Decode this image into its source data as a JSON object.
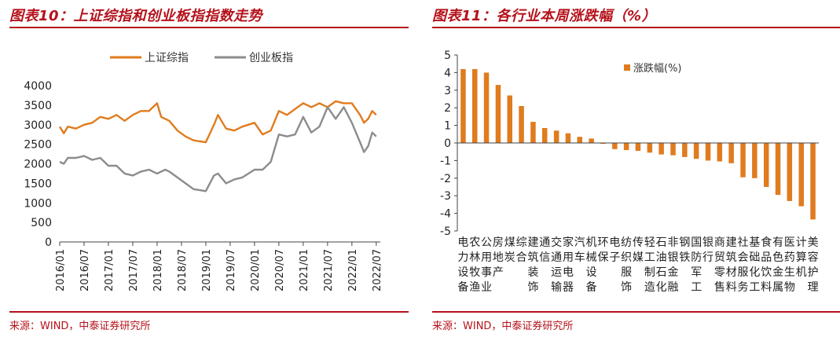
{
  "left": {
    "title": "图表10：上证综指和创业板指指数走势",
    "source": "来源：WIND，中泰证券研究所",
    "chart_data": {
      "type": "line",
      "ylim": [
        0,
        4000
      ],
      "yticks": [
        0,
        500,
        1000,
        1500,
        2000,
        2500,
        3000,
        3500,
        4000
      ],
      "xticks": [
        "2016/01",
        "2016/07",
        "2017/01",
        "2017/07",
        "2018/01",
        "2018/07",
        "2019/01",
        "2019/07",
        "2020/01",
        "2020/07",
        "2021/01",
        "2021/07",
        "2022/01",
        "2022/07"
      ],
      "legend_position": "top",
      "grid": false,
      "series": [
        {
          "name": "上证综指",
          "color": "#e07b1e",
          "points": [
            [
              "2016/01",
              2950
            ],
            [
              "2016/02",
              2780
            ],
            [
              "2016/03",
              2950
            ],
            [
              "2016/05",
              2900
            ],
            [
              "2016/07",
              3000
            ],
            [
              "2016/09",
              3050
            ],
            [
              "2016/11",
              3200
            ],
            [
              "2017/01",
              3150
            ],
            [
              "2017/03",
              3250
            ],
            [
              "2017/05",
              3100
            ],
            [
              "2017/07",
              3250
            ],
            [
              "2017/09",
              3350
            ],
            [
              "2017/11",
              3350
            ],
            [
              "2018/01",
              3550
            ],
            [
              "2018/02",
              3200
            ],
            [
              "2018/04",
              3100
            ],
            [
              "2018/06",
              2850
            ],
            [
              "2018/08",
              2700
            ],
            [
              "2018/10",
              2600
            ],
            [
              "2019/01",
              2550
            ],
            [
              "2019/03",
              3000
            ],
            [
              "2019/04",
              3250
            ],
            [
              "2019/06",
              2900
            ],
            [
              "2019/08",
              2850
            ],
            [
              "2019/10",
              2950
            ],
            [
              "2020/01",
              3050
            ],
            [
              "2020/03",
              2750
            ],
            [
              "2020/05",
              2850
            ],
            [
              "2020/07",
              3350
            ],
            [
              "2020/09",
              3250
            ],
            [
              "2020/11",
              3400
            ],
            [
              "2021/01",
              3550
            ],
            [
              "2021/03",
              3450
            ],
            [
              "2021/05",
              3550
            ],
            [
              "2021/07",
              3450
            ],
            [
              "2021/09",
              3600
            ],
            [
              "2021/11",
              3550
            ],
            [
              "2022/01",
              3550
            ],
            [
              "2022/03",
              3250
            ],
            [
              "2022/04",
              3050
            ],
            [
              "2022/05",
              3150
            ],
            [
              "2022/06",
              3350
            ],
            [
              "2022/07",
              3250
            ]
          ]
        },
        {
          "name": "创业板指",
          "color": "#8c8c8c",
          "points": [
            [
              "2016/01",
              2050
            ],
            [
              "2016/02",
              2000
            ],
            [
              "2016/03",
              2150
            ],
            [
              "2016/05",
              2150
            ],
            [
              "2016/07",
              2200
            ],
            [
              "2016/09",
              2100
            ],
            [
              "2016/11",
              2150
            ],
            [
              "2017/01",
              1950
            ],
            [
              "2017/03",
              1950
            ],
            [
              "2017/05",
              1750
            ],
            [
              "2017/07",
              1700
            ],
            [
              "2017/09",
              1800
            ],
            [
              "2017/11",
              1850
            ],
            [
              "2018/01",
              1750
            ],
            [
              "2018/03",
              1850
            ],
            [
              "2018/04",
              1800
            ],
            [
              "2018/06",
              1650
            ],
            [
              "2018/08",
              1500
            ],
            [
              "2018/10",
              1350
            ],
            [
              "2019/01",
              1300
            ],
            [
              "2019/03",
              1700
            ],
            [
              "2019/04",
              1750
            ],
            [
              "2019/06",
              1500
            ],
            [
              "2019/08",
              1600
            ],
            [
              "2019/10",
              1650
            ],
            [
              "2020/01",
              1850
            ],
            [
              "2020/03",
              1850
            ],
            [
              "2020/05",
              2050
            ],
            [
              "2020/07",
              2750
            ],
            [
              "2020/09",
              2700
            ],
            [
              "2020/11",
              2750
            ],
            [
              "2021/01",
              3200
            ],
            [
              "2021/03",
              2800
            ],
            [
              "2021/05",
              2950
            ],
            [
              "2021/07",
              3450
            ],
            [
              "2021/09",
              3150
            ],
            [
              "2021/11",
              3450
            ],
            [
              "2022/01",
              3050
            ],
            [
              "2022/03",
              2550
            ],
            [
              "2022/04",
              2300
            ],
            [
              "2022/05",
              2450
            ],
            [
              "2022/06",
              2800
            ],
            [
              "2022/07",
              2700
            ]
          ]
        }
      ]
    }
  },
  "right": {
    "title": "图表11：各行业本周涨跌幅（%）",
    "source": "来源：WIND，中泰证券研究所",
    "chart_data": {
      "type": "bar",
      "ylim": [
        -5,
        5
      ],
      "yticks": [
        -5,
        -4,
        -3,
        -2,
        -1,
        0,
        1,
        2,
        3,
        4,
        5
      ],
      "legend_position": "top-right",
      "series": [
        {
          "name": "涨跌幅(%)",
          "color": "#e07b1e",
          "values": [
            4.2,
            4.2,
            4.0,
            3.3,
            2.7,
            2.1,
            1.2,
            0.85,
            0.7,
            0.55,
            0.35,
            0.25,
            -0.05,
            -0.35,
            -0.4,
            -0.45,
            -0.55,
            -0.65,
            -0.7,
            -0.8,
            -0.9,
            -1.0,
            -1.05,
            -1.15,
            -1.95,
            -2.0,
            -2.5,
            -2.95,
            -3.3,
            -3.6,
            -4.35
          ]
        }
      ],
      "categories": [
        "电力设备",
        "农林牧渔",
        "公用事业",
        "房地产",
        "煤炭",
        "综合",
        "建筑装饰",
        "通信",
        "交通运输",
        "家用电器",
        "汽车",
        "机械设备",
        "环保",
        "电子",
        "纺织服饰",
        "传媒",
        "轻工制造",
        "石油石化",
        "非银金融",
        "钢铁",
        "国防军工",
        "银行",
        "商贸零售",
        "建筑材料",
        "社会服务",
        "基础化工",
        "食品饮料",
        "有色金属",
        "医药生物",
        "计算机",
        "美容护理"
      ]
    }
  }
}
